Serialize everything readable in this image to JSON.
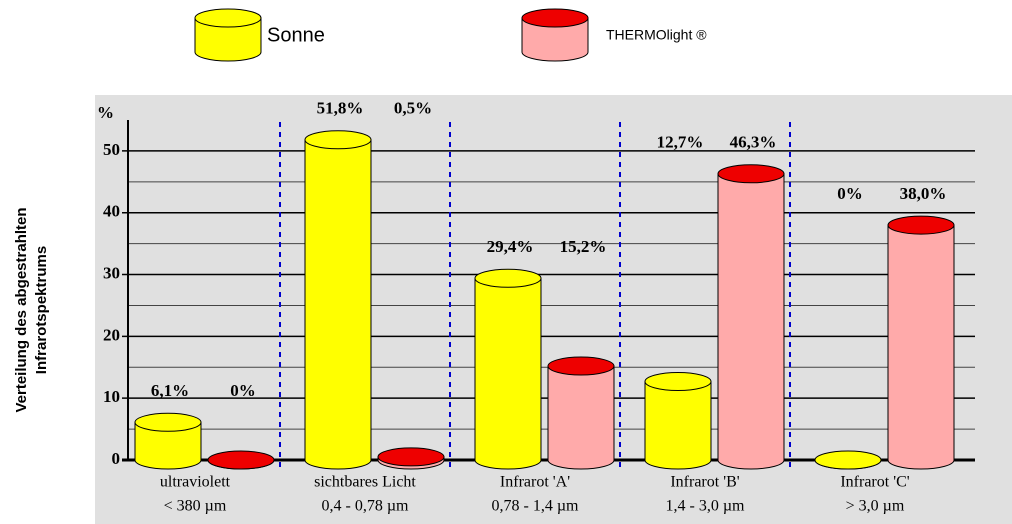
{
  "chart_data": {
    "type": "bar",
    "y_label": [
      "Verteilung des abgestrahlten",
      "Infrarotspektrums"
    ],
    "y_unit": "%",
    "categories": [
      [
        "ultraviolett",
        "< 380 µm"
      ],
      [
        "sichtbares Licht",
        "0,4 - 0,78 µm"
      ],
      [
        "Infrarot 'A'",
        "0,78 - 1,4 µm"
      ],
      [
        "Infrarot 'B'",
        "1,4 - 3,0 µm"
      ],
      [
        "Infrarot 'C'",
        "> 3,0 µm"
      ]
    ],
    "series": [
      {
        "name": "Sonne",
        "color": "#ffff00",
        "top_color": "#ffff00",
        "values": [
          6.1,
          51.8,
          29.4,
          12.7,
          0
        ],
        "value_labels": [
          "6,1%",
          "51,8%",
          "29,4%",
          "12,7%",
          "0%"
        ]
      },
      {
        "name": "THERMOlight ®",
        "color": "#ffaaaa",
        "top_color": "#ee0000",
        "values": [
          0,
          0.5,
          15.2,
          46.3,
          38.0
        ],
        "value_labels": [
          "0%",
          "0,5%",
          "15,2%",
          "46,3%",
          "38,0%"
        ]
      }
    ],
    "ylim": [
      0,
      55
    ],
    "yticks": [
      0,
      10,
      20,
      30,
      40,
      50
    ],
    "minor_yticks": [
      5,
      15,
      25,
      35,
      45
    ],
    "grid": true
  }
}
